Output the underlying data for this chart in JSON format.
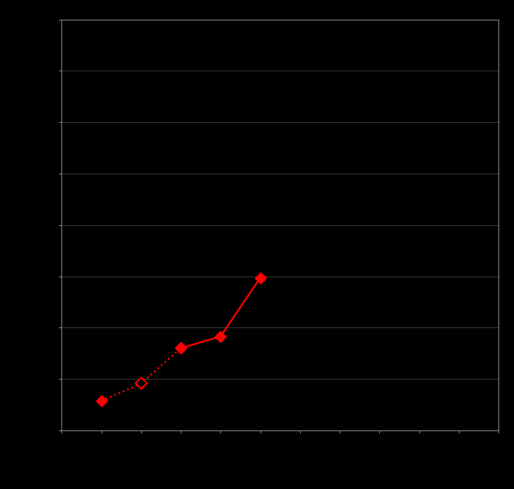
{
  "background_color": "#000000",
  "plot_bg_color": "#000000",
  "grid_color": "#555555",
  "line_color": "#ff0000",
  "marker_color": "#ff0000",
  "x_data": [
    1,
    2,
    3,
    4,
    5
  ],
  "y_data": [
    1.0,
    1.6,
    2.8,
    3.2,
    5.2
  ],
  "dotted_end_idx": 2,
  "n_gridlines": 8,
  "ylim": [
    0,
    14
  ],
  "xlim": [
    0,
    11
  ],
  "figsize": [
    7.28,
    6.93
  ],
  "dpi": 100,
  "spine_color": "#888888",
  "tick_color": "#888888",
  "marker_size": 8,
  "linewidth": 1.8
}
